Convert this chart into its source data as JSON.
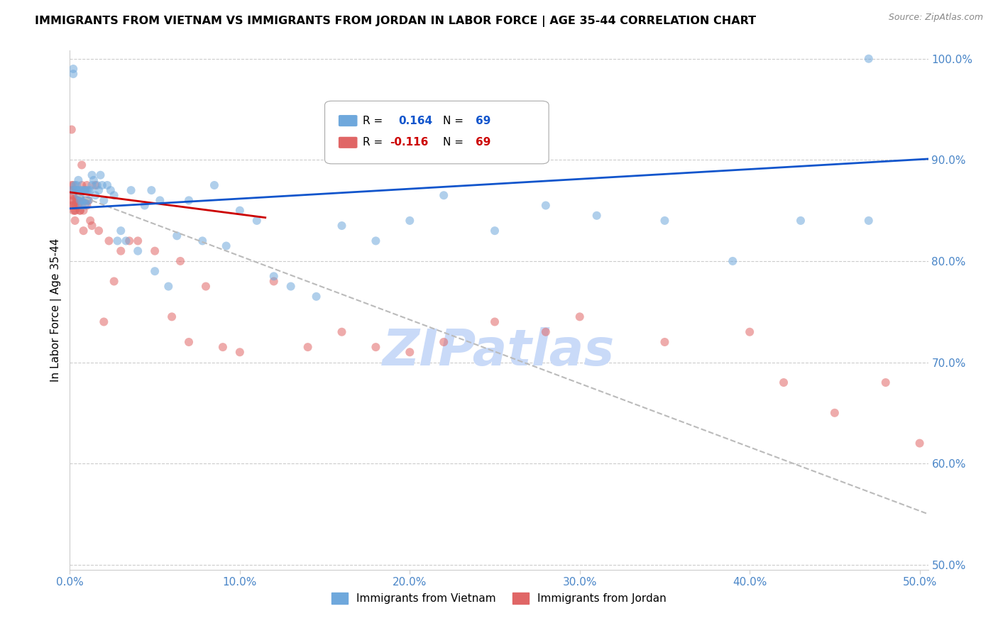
{
  "title": "IMMIGRANTS FROM VIETNAM VS IMMIGRANTS FROM JORDAN IN LABOR FORCE | AGE 35-44 CORRELATION CHART",
  "source": "Source: ZipAtlas.com",
  "ylabel": "In Labor Force | Age 35-44",
  "xlim": [
    0.0,
    0.505
  ],
  "ylim": [
    0.495,
    1.008
  ],
  "xticks": [
    0.0,
    0.1,
    0.2,
    0.3,
    0.4,
    0.5
  ],
  "xtick_labels": [
    "0.0%",
    "10.0%",
    "20.0%",
    "30.0%",
    "40.0%",
    "50.0%"
  ],
  "yticks_right": [
    0.5,
    0.6,
    0.7,
    0.8,
    0.9,
    1.0
  ],
  "ytick_labels_right": [
    "50.0%",
    "60.0%",
    "70.0%",
    "80.0%",
    "90.0%",
    "100.0%"
  ],
  "legend_blue_r_val": "0.164",
  "legend_blue_n_val": "69",
  "legend_pink_r_val": "-0.116",
  "legend_pink_n_val": "69",
  "blue_color": "#6fa8dc",
  "pink_color": "#e06666",
  "trend_blue_color": "#1155cc",
  "trend_pink_solid_color": "#cc0000",
  "trend_pink_dash_color": "#bbbbbb",
  "axis_tick_color": "#4a86c8",
  "grid_color": "#cccccc",
  "watermark": "ZIPatlas",
  "watermark_color": "#c9daf8",
  "legend_label_blue": "Immigrants from Vietnam",
  "legend_label_pink": "Immigrants from Jordan",
  "vietnam_x": [
    0.001,
    0.002,
    0.002,
    0.003,
    0.003,
    0.004,
    0.004,
    0.005,
    0.005,
    0.005,
    0.006,
    0.006,
    0.006,
    0.007,
    0.007,
    0.007,
    0.008,
    0.008,
    0.009,
    0.009,
    0.01,
    0.01,
    0.011,
    0.011,
    0.012,
    0.013,
    0.013,
    0.014,
    0.015,
    0.016,
    0.017,
    0.018,
    0.019,
    0.02,
    0.022,
    0.024,
    0.026,
    0.028,
    0.03,
    0.033,
    0.036,
    0.04,
    0.044,
    0.048,
    0.053,
    0.058,
    0.063,
    0.07,
    0.078,
    0.085,
    0.092,
    0.1,
    0.11,
    0.12,
    0.13,
    0.145,
    0.16,
    0.18,
    0.2,
    0.22,
    0.25,
    0.28,
    0.31,
    0.35,
    0.39,
    0.43,
    0.47,
    0.05,
    0.47
  ],
  "vietnam_y": [
    0.87,
    0.99,
    0.985,
    0.87,
    0.875,
    0.87,
    0.875,
    0.865,
    0.87,
    0.88,
    0.86,
    0.865,
    0.87,
    0.855,
    0.86,
    0.87,
    0.86,
    0.87,
    0.855,
    0.87,
    0.86,
    0.87,
    0.86,
    0.87,
    0.87,
    0.875,
    0.885,
    0.88,
    0.865,
    0.875,
    0.87,
    0.885,
    0.875,
    0.86,
    0.875,
    0.87,
    0.865,
    0.82,
    0.83,
    0.82,
    0.87,
    0.81,
    0.855,
    0.87,
    0.86,
    0.775,
    0.825,
    0.86,
    0.82,
    0.875,
    0.815,
    0.85,
    0.84,
    0.785,
    0.775,
    0.765,
    0.835,
    0.82,
    0.84,
    0.865,
    0.83,
    0.855,
    0.845,
    0.84,
    0.8,
    0.84,
    0.84,
    0.79,
    1.0
  ],
  "jordan_x": [
    0.001,
    0.001,
    0.001,
    0.001,
    0.001,
    0.001,
    0.002,
    0.002,
    0.002,
    0.002,
    0.002,
    0.002,
    0.003,
    0.003,
    0.003,
    0.003,
    0.003,
    0.004,
    0.004,
    0.004,
    0.004,
    0.005,
    0.005,
    0.005,
    0.006,
    0.006,
    0.006,
    0.007,
    0.007,
    0.007,
    0.008,
    0.008,
    0.009,
    0.009,
    0.01,
    0.01,
    0.011,
    0.012,
    0.013,
    0.015,
    0.017,
    0.02,
    0.023,
    0.026,
    0.03,
    0.035,
    0.04,
    0.05,
    0.06,
    0.065,
    0.07,
    0.08,
    0.09,
    0.1,
    0.12,
    0.14,
    0.16,
    0.18,
    0.2,
    0.22,
    0.25,
    0.28,
    0.3,
    0.35,
    0.4,
    0.42,
    0.45,
    0.48,
    0.5
  ],
  "jordan_y": [
    0.93,
    0.875,
    0.87,
    0.865,
    0.86,
    0.855,
    0.875,
    0.87,
    0.865,
    0.86,
    0.855,
    0.85,
    0.855,
    0.855,
    0.85,
    0.85,
    0.84,
    0.86,
    0.86,
    0.87,
    0.865,
    0.855,
    0.86,
    0.855,
    0.85,
    0.85,
    0.86,
    0.86,
    0.875,
    0.895,
    0.83,
    0.85,
    0.86,
    0.87,
    0.855,
    0.875,
    0.86,
    0.84,
    0.835,
    0.875,
    0.83,
    0.74,
    0.82,
    0.78,
    0.81,
    0.82,
    0.82,
    0.81,
    0.745,
    0.8,
    0.72,
    0.775,
    0.715,
    0.71,
    0.78,
    0.715,
    0.73,
    0.715,
    0.71,
    0.72,
    0.74,
    0.73,
    0.745,
    0.72,
    0.73,
    0.68,
    0.65,
    0.68,
    0.62
  ],
  "vietnam_trend_x0": 0.0,
  "vietnam_trend_x1": 0.505,
  "vietnam_trend_y0": 0.852,
  "vietnam_trend_y1": 0.901,
  "jordan_trend_solid_x0": 0.0,
  "jordan_trend_solid_x1": 0.115,
  "jordan_trend_solid_y0": 0.868,
  "jordan_trend_solid_y1": 0.843,
  "jordan_trend_dash_x0": 0.0,
  "jordan_trend_dash_x1": 0.505,
  "jordan_trend_dash_y0": 0.868,
  "jordan_trend_dash_y1": 0.55
}
